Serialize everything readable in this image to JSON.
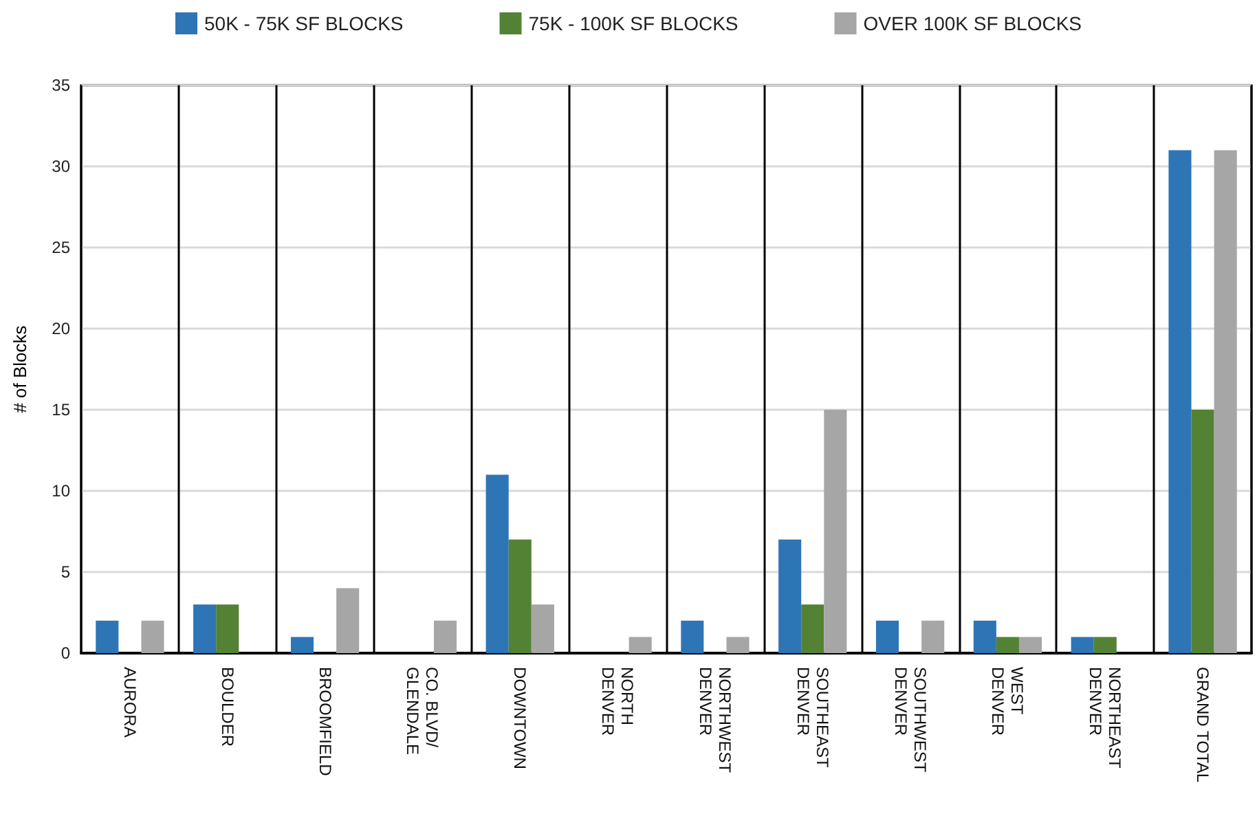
{
  "chart_data": {
    "type": "bar",
    "ylabel": "# of Blocks",
    "categories": [
      "AURORA",
      "BOULDER",
      "BROOMFIELD",
      "CO. BLVD/\nGLENDALE",
      "DOWNTOWN",
      "NORTH\nDENVER",
      "NORTHWEST\nDENVER",
      "SOUTHEAST\nDENVER",
      "SOUTHWEST\nDENVER",
      "WEST\nDENVER",
      "NORTHEAST\nDENVER",
      "GRAND TOTAL"
    ],
    "series": [
      {
        "name": "50K - 75K SF BLOCKS",
        "color": "#2e75b6",
        "values": [
          2,
          3,
          1,
          0,
          11,
          0,
          2,
          7,
          2,
          2,
          1,
          31
        ]
      },
      {
        "name": "75K - 100K SF BLOCKS",
        "color": "#548235",
        "values": [
          0,
          3,
          0,
          0,
          7,
          0,
          0,
          3,
          0,
          1,
          1,
          15
        ]
      },
      {
        "name": "OVER 100K SF BLOCKS",
        "color": "#a6a6a6",
        "values": [
          2,
          0,
          4,
          2,
          3,
          1,
          1,
          15,
          2,
          1,
          0,
          31
        ]
      }
    ],
    "ylim": [
      0,
      35
    ],
    "yticks": [
      0,
      5,
      10,
      15,
      20,
      25,
      30,
      35
    ],
    "grid": true,
    "legend": "top"
  }
}
